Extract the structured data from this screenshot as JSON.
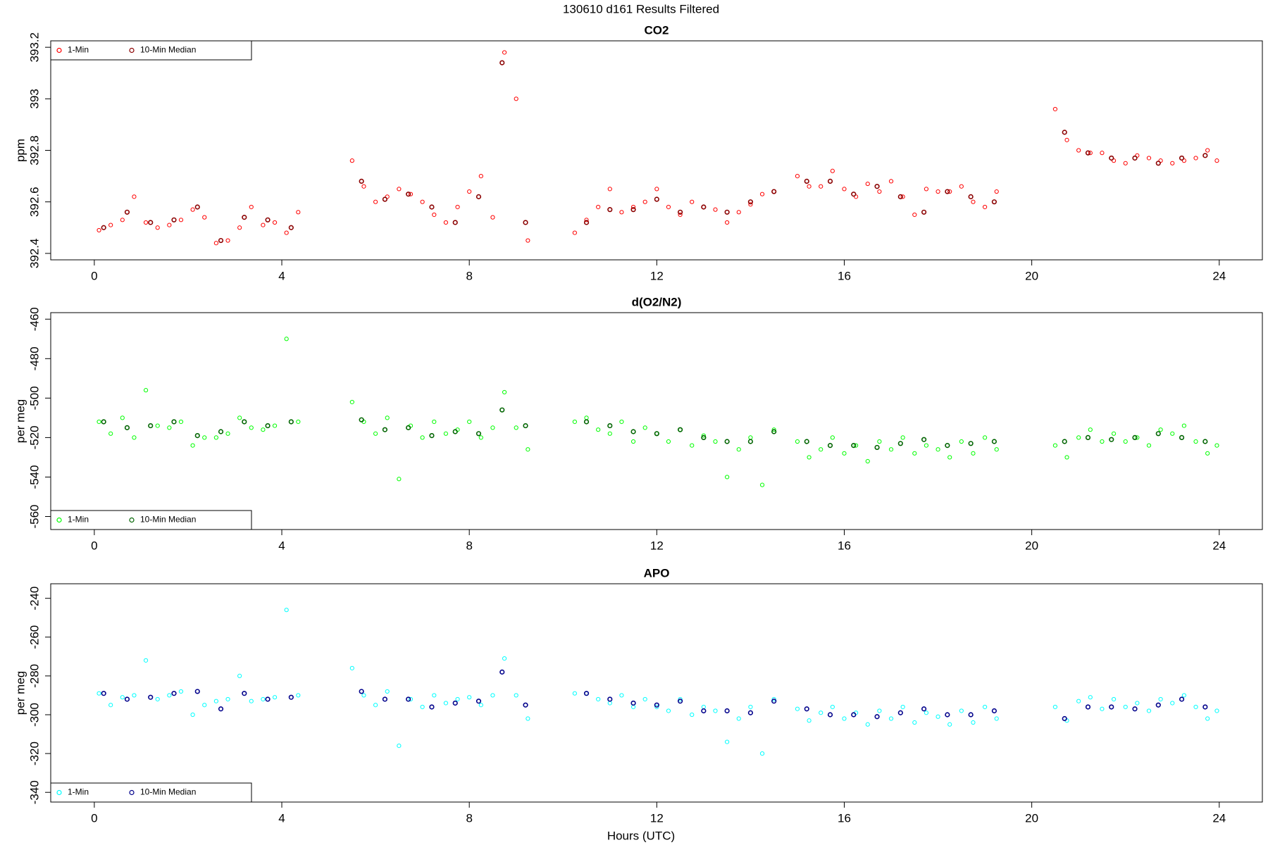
{
  "title": "130610   d161   Results Filtered",
  "xlabel": "Hours (UTC)",
  "chart_data": [
    {
      "type": "scatter",
      "title": "CO2",
      "ylabel": "ppm",
      "legend": "top-left",
      "xlim": [
        -0.93,
        24.92
      ],
      "xticks": [
        0,
        4,
        8,
        12,
        16,
        20,
        24
      ],
      "ylim": [
        392.375,
        393.225
      ],
      "yticks": [
        392.4,
        392.6,
        392.8,
        393.0,
        393.2
      ],
      "series": [
        {
          "name": "1-Min",
          "color": "#ff0000",
          "x": [
            0.1,
            0.35,
            0.6,
            0.85,
            1.1,
            1.35,
            1.6,
            1.85,
            2.1,
            2.35,
            2.6,
            2.85,
            3.1,
            3.35,
            3.6,
            3.85,
            4.1,
            4.35,
            5.5,
            5.75,
            6,
            6.25,
            6.5,
            6.75,
            7,
            7.25,
            7.5,
            7.75,
            8,
            8.25,
            8.5,
            8.75,
            9,
            9.25,
            10.25,
            10.5,
            10.75,
            11,
            11.25,
            11.5,
            11.75,
            12,
            12.25,
            12.5,
            12.75,
            13,
            13.25,
            13.5,
            13.75,
            14,
            14.25,
            14.5,
            15,
            15.25,
            15.5,
            15.75,
            16,
            16.25,
            16.5,
            16.75,
            17,
            17.25,
            17.5,
            17.75,
            18,
            18.25,
            18.5,
            18.75,
            19,
            19.25,
            20.5,
            20.75,
            21,
            21.25,
            21.5,
            21.75,
            22,
            22.25,
            22.5,
            22.75,
            23,
            23.25,
            23.5,
            23.75,
            23.95
          ],
          "values": [
            392.49,
            392.51,
            392.53,
            392.62,
            392.52,
            392.5,
            392.51,
            392.53,
            392.57,
            392.54,
            392.44,
            392.45,
            392.5,
            392.58,
            392.51,
            392.52,
            392.48,
            392.56,
            392.76,
            392.66,
            392.6,
            392.62,
            392.65,
            392.63,
            392.6,
            392.55,
            392.52,
            392.58,
            392.64,
            392.7,
            392.54,
            393.18,
            393.0,
            392.45,
            392.48,
            392.53,
            392.58,
            392.65,
            392.56,
            392.58,
            392.6,
            392.65,
            392.58,
            392.55,
            392.6,
            392.58,
            392.57,
            392.52,
            392.56,
            392.59,
            392.63,
            392.64,
            392.7,
            392.66,
            392.66,
            392.72,
            392.65,
            392.62,
            392.67,
            392.64,
            392.68,
            392.62,
            392.55,
            392.65,
            392.64,
            392.64,
            392.66,
            392.6,
            392.58,
            392.64,
            392.96,
            392.84,
            392.8,
            392.79,
            392.79,
            392.76,
            392.75,
            392.78,
            392.77,
            392.76,
            392.75,
            392.76,
            392.77,
            392.8,
            392.76
          ]
        },
        {
          "name": "10-Min Median",
          "color": "#8b0000",
          "x": [
            0.2,
            0.7,
            1.2,
            1.7,
            2.2,
            2.7,
            3.2,
            3.7,
            4.2,
            5.7,
            6.2,
            6.7,
            7.2,
            7.7,
            8.2,
            8.7,
            9.2,
            10.5,
            11,
            11.5,
            12,
            12.5,
            13,
            13.5,
            14,
            14.5,
            15.2,
            15.7,
            16.2,
            16.7,
            17.2,
            17.7,
            18.2,
            18.7,
            19.2,
            20.7,
            21.2,
            21.7,
            22.2,
            22.7,
            23.2,
            23.7
          ],
          "values": [
            392.5,
            392.56,
            392.52,
            392.53,
            392.58,
            392.45,
            392.54,
            392.53,
            392.5,
            392.68,
            392.61,
            392.63,
            392.58,
            392.52,
            392.62,
            393.14,
            392.52,
            392.52,
            392.57,
            392.57,
            392.61,
            392.56,
            392.58,
            392.56,
            392.6,
            392.64,
            392.68,
            392.68,
            392.63,
            392.66,
            392.62,
            392.56,
            392.64,
            392.62,
            392.6,
            392.87,
            392.79,
            392.77,
            392.77,
            392.75,
            392.77,
            392.78
          ]
        }
      ]
    },
    {
      "type": "scatter",
      "title": "d(O2/N2)",
      "ylabel": "per meg",
      "legend": "bottom-left",
      "xlim": [
        -0.93,
        24.92
      ],
      "xticks": [
        0,
        4,
        8,
        12,
        16,
        20,
        24
      ],
      "ylim": [
        -566.6,
        -456.7
      ],
      "yticks": [
        -560,
        -540,
        -520,
        -500,
        -480,
        -460
      ],
      "series": [
        {
          "name": "1-Min",
          "color": "#00ff00",
          "x": [
            0.1,
            0.35,
            0.6,
            0.85,
            1.1,
            1.35,
            1.6,
            1.85,
            2.1,
            2.35,
            2.6,
            2.85,
            3.1,
            3.35,
            3.6,
            3.85,
            4.1,
            4.35,
            5.5,
            5.75,
            6,
            6.25,
            6.5,
            6.75,
            7,
            7.25,
            7.5,
            7.75,
            8,
            8.25,
            8.5,
            8.75,
            9,
            9.25,
            10.25,
            10.5,
            10.75,
            11,
            11.25,
            11.5,
            11.75,
            12,
            12.25,
            12.5,
            12.75,
            13,
            13.25,
            13.5,
            13.75,
            14,
            14.25,
            14.5,
            15,
            15.25,
            15.5,
            15.75,
            16,
            16.25,
            16.5,
            16.75,
            17,
            17.25,
            17.5,
            17.75,
            18,
            18.25,
            18.5,
            18.75,
            19,
            19.25,
            20.5,
            20.75,
            21,
            21.25,
            21.5,
            21.75,
            22,
            22.25,
            22.5,
            22.75,
            23,
            23.25,
            23.5,
            23.75,
            23.95
          ],
          "values": [
            -512,
            -518,
            -510,
            -520,
            -496,
            -514,
            -515,
            -512,
            -524,
            -520,
            -520,
            -518,
            -510,
            -515,
            -516,
            -514,
            -470,
            -512,
            -502,
            -512,
            -518,
            -510,
            -541,
            -514,
            -520,
            -512,
            -518,
            -516,
            -512,
            -520,
            -515,
            -497,
            -515,
            -526,
            -512,
            -510,
            -516,
            -518,
            -512,
            -522,
            -515,
            -518,
            -522,
            -516,
            -524,
            -519,
            -522,
            -540,
            -526,
            -520,
            -544,
            -516,
            -522,
            -530,
            -526,
            -520,
            -528,
            -524,
            -532,
            -522,
            -526,
            -520,
            -528,
            -524,
            -526,
            -530,
            -522,
            -528,
            -520,
            -526,
            -524,
            -530,
            -520,
            -516,
            -522,
            -518,
            -522,
            -520,
            -524,
            -516,
            -518,
            -514,
            -522,
            -528,
            -524
          ]
        },
        {
          "name": "10-Min Median",
          "color": "#006400",
          "x": [
            0.2,
            0.7,
            1.2,
            1.7,
            2.2,
            2.7,
            3.2,
            3.7,
            4.2,
            5.7,
            6.2,
            6.7,
            7.2,
            7.7,
            8.2,
            8.7,
            9.2,
            10.5,
            11,
            11.5,
            12,
            12.5,
            13,
            13.5,
            14,
            14.5,
            15.2,
            15.7,
            16.2,
            16.7,
            17.2,
            17.7,
            18.2,
            18.7,
            19.2,
            20.7,
            21.2,
            21.7,
            22.2,
            22.7,
            23.2,
            23.7
          ],
          "values": [
            -512,
            -515,
            -514,
            -512,
            -519,
            -517,
            -512,
            -514,
            -512,
            -511,
            -516,
            -515,
            -519,
            -517,
            -518,
            -506,
            -514,
            -512,
            -514,
            -517,
            -518,
            -516,
            -520,
            -522,
            -522,
            -517,
            -522,
            -524,
            -524,
            -525,
            -523,
            -521,
            -524,
            -523,
            -522,
            -522,
            -520,
            -521,
            -520,
            -518,
            -520,
            -522
          ]
        }
      ]
    },
    {
      "type": "scatter",
      "title": "APO",
      "ylabel": "per meg",
      "legend": "bottom-left",
      "xlim": [
        -0.93,
        24.92
      ],
      "xticks": [
        0,
        4,
        8,
        12,
        16,
        20,
        24
      ],
      "ylim": [
        -345,
        -232.5
      ],
      "yticks": [
        -340,
        -320,
        -300,
        -280,
        -260,
        -240
      ],
      "series": [
        {
          "name": "1-Min",
          "color": "#00ffff",
          "x": [
            0.1,
            0.35,
            0.6,
            0.85,
            1.1,
            1.35,
            1.6,
            1.85,
            2.1,
            2.35,
            2.6,
            2.85,
            3.1,
            3.35,
            3.6,
            3.85,
            4.1,
            4.35,
            5.5,
            5.75,
            6,
            6.25,
            6.5,
            6.75,
            7,
            7.25,
            7.5,
            7.75,
            8,
            8.25,
            8.5,
            8.75,
            9,
            9.25,
            10.25,
            10.5,
            10.75,
            11,
            11.25,
            11.5,
            11.75,
            12,
            12.25,
            12.5,
            12.75,
            13,
            13.25,
            13.5,
            13.75,
            14,
            14.25,
            14.5,
            15,
            15.25,
            15.5,
            15.75,
            16,
            16.25,
            16.5,
            16.75,
            17,
            17.25,
            17.5,
            17.75,
            18,
            18.25,
            18.5,
            18.75,
            19,
            19.25,
            20.5,
            20.75,
            21,
            21.25,
            21.5,
            21.75,
            22,
            22.25,
            22.5,
            22.75,
            23,
            23.25,
            23.5,
            23.75,
            23.95
          ],
          "values": [
            -289,
            -295,
            -291,
            -290,
            -272,
            -292,
            -290,
            -288,
            -300,
            -295,
            -293,
            -292,
            -280,
            -293,
            -292,
            -291,
            -246,
            -290,
            -276,
            -290,
            -295,
            -288,
            -316,
            -292,
            -296,
            -290,
            -294,
            -292,
            -291,
            -295,
            -290,
            -271,
            -290,
            -302,
            -289,
            -289,
            -292,
            -294,
            -290,
            -296,
            -292,
            -296,
            -298,
            -292,
            -300,
            -296,
            -298,
            -314,
            -302,
            -296,
            -320,
            -292,
            -297,
            -303,
            -299,
            -296,
            -302,
            -299,
            -305,
            -298,
            -302,
            -296,
            -304,
            -299,
            -301,
            -305,
            -298,
            -304,
            -296,
            -302,
            -296,
            -303,
            -293,
            -291,
            -297,
            -292,
            -296,
            -294,
            -298,
            -292,
            -294,
            -290,
            -296,
            -302,
            -298
          ]
        },
        {
          "name": "10-Min Median",
          "color": "#00008b",
          "x": [
            0.2,
            0.7,
            1.2,
            1.7,
            2.2,
            2.7,
            3.2,
            3.7,
            4.2,
            5.7,
            6.2,
            6.7,
            7.2,
            7.7,
            8.2,
            8.7,
            9.2,
            10.5,
            11,
            11.5,
            12,
            12.5,
            13,
            13.5,
            14,
            14.5,
            15.2,
            15.7,
            16.2,
            16.7,
            17.2,
            17.7,
            18.2,
            18.7,
            19.2,
            20.7,
            21.2,
            21.7,
            22.2,
            22.7,
            23.2,
            23.7
          ],
          "values": [
            -289,
            -292,
            -291,
            -289,
            -288,
            -297,
            -289,
            -292,
            -291,
            -288,
            -292,
            -292,
            -296,
            -294,
            -293,
            -278,
            -295,
            -289,
            -292,
            -294,
            -295,
            -293,
            -298,
            -298,
            -299,
            -293,
            -297,
            -300,
            -300,
            -301,
            -299,
            -297,
            -300,
            -300,
            -298,
            -302,
            -296,
            -296,
            -297,
            -295,
            -292,
            -296
          ]
        }
      ]
    }
  ]
}
